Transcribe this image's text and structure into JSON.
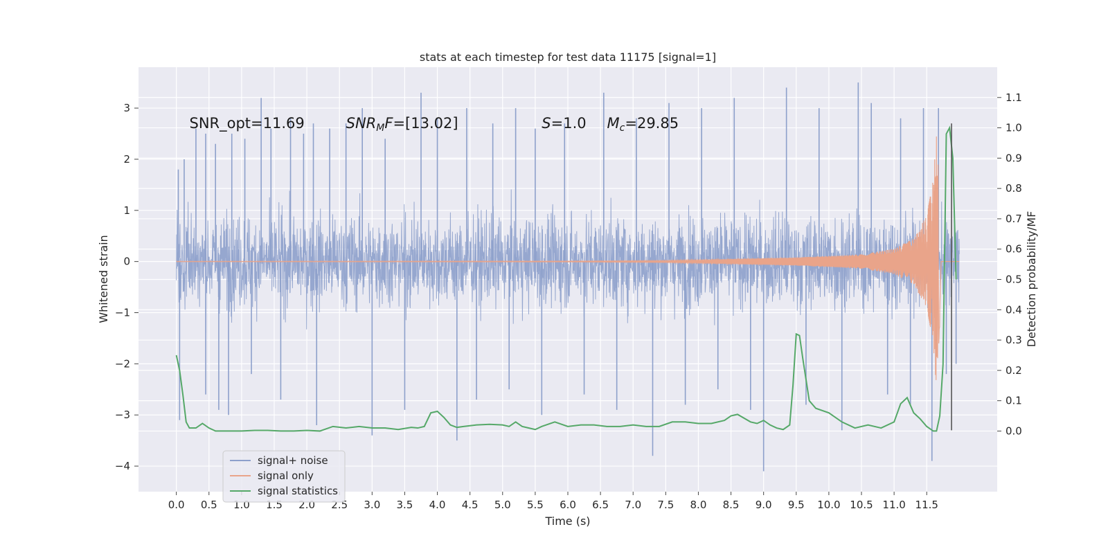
{
  "chart_data": {
    "type": "line",
    "title": "stats at each timestep for test data 11175 [signal=1]",
    "xlabel": "Time (s)",
    "ylabel": "Whitened strain",
    "ylabel_right": "Detection probability/MF",
    "xlim": [
      -0.58,
      12.58
    ],
    "ylim": [
      -4.5,
      3.8
    ],
    "ylim_right": [
      -0.2,
      1.2
    ],
    "x_ticks": [
      0.0,
      0.5,
      1.0,
      1.5,
      2.0,
      2.5,
      3.0,
      3.5,
      4.0,
      4.5,
      5.0,
      5.5,
      6.0,
      6.5,
      7.0,
      7.5,
      8.0,
      8.5,
      9.0,
      9.5,
      10.0,
      10.5,
      11.0,
      11.5
    ],
    "x_tick_labels": [
      "0.0",
      "0.5",
      "1.0",
      "1.5",
      "2.0",
      "2.5",
      "3.0",
      "3.5",
      "4.0",
      "4.5",
      "5.0",
      "5.5",
      "6.0",
      "6.5",
      "7.0",
      "7.5",
      "8.0",
      "8.5",
      "9.0",
      "9.5",
      "10.0",
      "10.5",
      "11.0",
      "11.5"
    ],
    "y_ticks": [
      -4,
      -3,
      -2,
      -1,
      0,
      1,
      2,
      3
    ],
    "y_tick_labels": [
      "−4",
      "−3",
      "−2",
      "−1",
      "0",
      "1",
      "2",
      "3"
    ],
    "y_ticks_right": [
      0.0,
      0.1,
      0.2,
      0.3,
      0.4,
      0.5,
      0.6,
      0.7,
      0.8,
      0.9,
      1.0,
      1.1
    ],
    "y_tick_labels_right": [
      "0.0",
      "0.1",
      "0.2",
      "0.3",
      "0.4",
      "0.5",
      "0.6",
      "0.7",
      "0.8",
      "0.9",
      "1.0",
      "1.1"
    ],
    "grid": true,
    "legend_position": "lower-left",
    "annotations": [
      {
        "id": "snr-opt",
        "x": 0.2,
        "y": 2.7,
        "parts": [
          {
            "t": "SNR_opt=11.69"
          }
        ]
      },
      {
        "id": "snr-mf",
        "x": 2.6,
        "y": 2.7,
        "parts": [
          {
            "t": "SNR",
            "i": true
          },
          {
            "t": "M",
            "i": true,
            "sub": true
          },
          {
            "t": "F",
            "i": true
          },
          {
            "t": "=[13.02]"
          }
        ]
      },
      {
        "id": "s-val",
        "x": 5.6,
        "y": 2.7,
        "parts": [
          {
            "t": "S",
            "i": true
          },
          {
            "t": "=1.0"
          }
        ]
      },
      {
        "id": "mc-val",
        "x": 6.6,
        "y": 2.7,
        "parts": [
          {
            "t": "M",
            "i": true
          },
          {
            "t": "c",
            "i": true,
            "sub": true
          },
          {
            "t": "=29.85"
          }
        ]
      }
    ],
    "series": [
      {
        "name": "signal+ noise",
        "color": "#8da0cb",
        "axis": "left",
        "style": "dense noisy trace (~±1.5 band)",
        "x_range": [
          0.0,
          12.0
        ],
        "spikes": [
          [
            0.03,
            1.8
          ],
          [
            0.05,
            -3.1
          ],
          [
            0.12,
            2.0
          ],
          [
            0.3,
            2.6
          ],
          [
            0.45,
            2.5
          ],
          [
            0.45,
            -2.6
          ],
          [
            0.6,
            2.3
          ],
          [
            0.65,
            -2.9
          ],
          [
            0.8,
            -3.0
          ],
          [
            0.85,
            2.5
          ],
          [
            1.05,
            2.4
          ],
          [
            1.15,
            -2.2
          ],
          [
            1.3,
            3.2
          ],
          [
            1.45,
            2.6
          ],
          [
            1.6,
            -2.7
          ],
          [
            1.75,
            2.8
          ],
          [
            1.95,
            2.5
          ],
          [
            2.1,
            2.7
          ],
          [
            2.15,
            -3.2
          ],
          [
            2.35,
            2.6
          ],
          [
            2.6,
            2.7
          ],
          [
            2.85,
            3.0
          ],
          [
            3.0,
            -3.4
          ],
          [
            3.2,
            2.4
          ],
          [
            3.5,
            -2.9
          ],
          [
            3.75,
            3.3
          ],
          [
            4.0,
            2.8
          ],
          [
            4.3,
            -3.5
          ],
          [
            4.45,
            3.0
          ],
          [
            4.6,
            -2.7
          ],
          [
            4.85,
            2.7
          ],
          [
            5.1,
            -2.5
          ],
          [
            5.2,
            3.0
          ],
          [
            5.5,
            2.6
          ],
          [
            5.6,
            -3.0
          ],
          [
            5.95,
            2.7
          ],
          [
            6.25,
            -2.6
          ],
          [
            6.55,
            3.3
          ],
          [
            6.75,
            -2.9
          ],
          [
            7.05,
            2.8
          ],
          [
            7.3,
            -3.8
          ],
          [
            7.55,
            3.1
          ],
          [
            7.8,
            -2.8
          ],
          [
            8.05,
            3.0
          ],
          [
            8.3,
            -2.5
          ],
          [
            8.55,
            3.2
          ],
          [
            8.8,
            -2.9
          ],
          [
            9.0,
            -4.1
          ],
          [
            9.35,
            3.4
          ],
          [
            9.65,
            -2.8
          ],
          [
            9.85,
            3.0
          ],
          [
            10.2,
            -3.3
          ],
          [
            10.45,
            3.5
          ],
          [
            10.65,
            3.1
          ],
          [
            10.9,
            -2.6
          ],
          [
            11.1,
            2.8
          ],
          [
            11.25,
            -2.8
          ],
          [
            11.45,
            3.0
          ],
          [
            11.58,
            -3.9
          ],
          [
            11.68,
            3.0
          ],
          [
            11.8,
            -2.2
          ],
          [
            11.95,
            -2.0
          ]
        ]
      },
      {
        "name": "signal only",
        "color": "#e9a48a",
        "axis": "left",
        "style": "chirp: oscillation growing toward merger",
        "x_range": [
          0.0,
          12.0
        ],
        "envelope": [
          [
            0.0,
            0.005
          ],
          [
            6.0,
            0.01
          ],
          [
            7.5,
            0.02
          ],
          [
            8.5,
            0.05
          ],
          [
            9.5,
            0.08
          ],
          [
            10.5,
            0.14
          ],
          [
            11.0,
            0.25
          ],
          [
            11.3,
            0.45
          ],
          [
            11.5,
            0.9
          ],
          [
            11.6,
            1.6
          ],
          [
            11.65,
            2.6
          ],
          [
            11.7,
            1.2
          ],
          [
            11.72,
            0.0
          ],
          [
            12.0,
            0.0
          ]
        ]
      },
      {
        "name": "signal statistics",
        "color": "#55a868",
        "axis": "right",
        "x": [
          0.0,
          0.05,
          0.1,
          0.15,
          0.2,
          0.3,
          0.4,
          0.5,
          0.6,
          0.8,
          1.0,
          1.2,
          1.4,
          1.6,
          1.8,
          2.0,
          2.2,
          2.4,
          2.6,
          2.8,
          3.0,
          3.2,
          3.4,
          3.6,
          3.7,
          3.8,
          3.9,
          4.0,
          4.1,
          4.2,
          4.3,
          4.4,
          4.6,
          4.8,
          5.0,
          5.1,
          5.2,
          5.3,
          5.5,
          5.6,
          5.8,
          6.0,
          6.2,
          6.4,
          6.6,
          6.8,
          7.0,
          7.2,
          7.4,
          7.6,
          7.8,
          8.0,
          8.2,
          8.4,
          8.5,
          8.6,
          8.8,
          8.9,
          9.0,
          9.1,
          9.2,
          9.3,
          9.4,
          9.45,
          9.5,
          9.55,
          9.6,
          9.7,
          9.8,
          10.0,
          10.2,
          10.4,
          10.6,
          10.8,
          11.0,
          11.1,
          11.2,
          11.3,
          11.4,
          11.5,
          11.6,
          11.65,
          11.7,
          11.75,
          11.8,
          11.85,
          11.9,
          11.95
        ],
        "values": [
          0.25,
          0.2,
          0.12,
          0.03,
          0.01,
          0.01,
          0.025,
          0.01,
          0.0,
          0.0,
          0.0,
          0.002,
          0.002,
          0.0,
          0.0,
          0.002,
          0.0,
          0.015,
          0.01,
          0.015,
          0.01,
          0.01,
          0.005,
          0.012,
          0.01,
          0.015,
          0.06,
          0.065,
          0.045,
          0.02,
          0.012,
          0.015,
          0.02,
          0.022,
          0.02,
          0.015,
          0.03,
          0.015,
          0.005,
          0.015,
          0.03,
          0.015,
          0.02,
          0.02,
          0.015,
          0.015,
          0.02,
          0.015,
          0.015,
          0.03,
          0.03,
          0.025,
          0.025,
          0.035,
          0.05,
          0.055,
          0.03,
          0.025,
          0.035,
          0.02,
          0.01,
          0.005,
          0.02,
          0.15,
          0.32,
          0.315,
          0.24,
          0.1,
          0.075,
          0.06,
          0.03,
          0.01,
          0.02,
          0.01,
          0.03,
          0.09,
          0.11,
          0.06,
          0.04,
          0.015,
          0.0,
          0.0,
          0.05,
          0.22,
          0.98,
          1.0,
          0.9,
          0.5
        ]
      }
    ],
    "vertical_markers": [
      11.88
    ]
  }
}
